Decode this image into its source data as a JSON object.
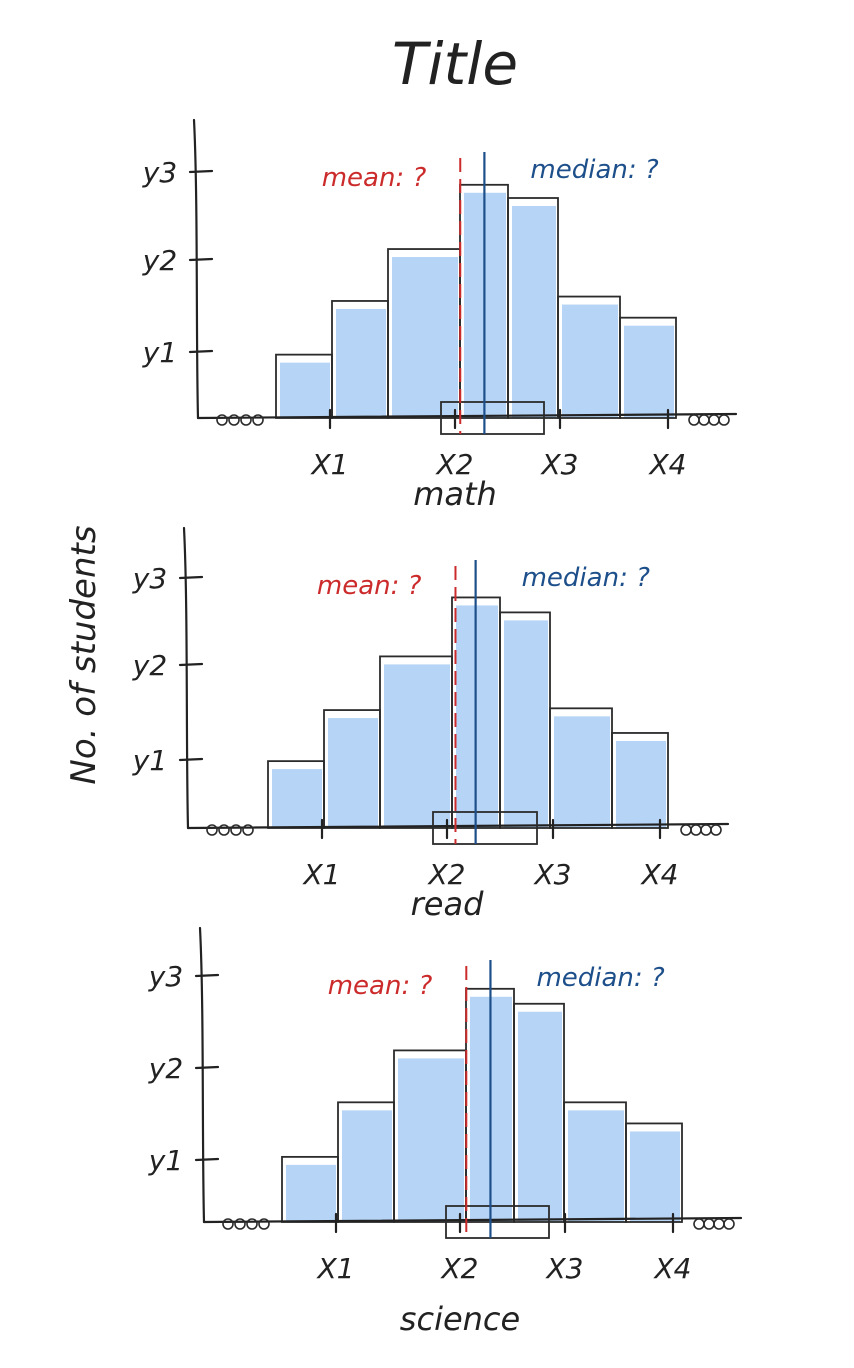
{
  "title": "Title",
  "ylabel": "No. of students",
  "chart_data": [
    {
      "type": "bar",
      "xlabel": "math",
      "x_ticks": [
        "X1",
        "X2",
        "X3",
        "X4"
      ],
      "y_ticks": [
        "y1",
        "y2",
        "y3"
      ],
      "values": [
        0.72,
        1.33,
        1.92,
        2.65,
        2.5,
        1.38,
        1.14
      ],
      "mean_label": "mean: ?",
      "median_label": "median: ?",
      "mean_x": 2.05,
      "median_x": 2.28,
      "grid": false
    },
    {
      "type": "bar",
      "xlabel": "read",
      "x_ticks": [
        "X1",
        "X2",
        "X3",
        "X4"
      ],
      "y_ticks": [
        "y1",
        "y2",
        "y3"
      ],
      "values": [
        0.76,
        1.34,
        1.95,
        2.62,
        2.45,
        1.36,
        1.08
      ],
      "mean_label": "mean: ?",
      "median_label": "median: ?",
      "mean_x": 2.08,
      "median_x": 2.27,
      "grid": false
    },
    {
      "type": "bar",
      "xlabel": "science",
      "x_ticks": [
        "X1",
        "X2",
        "X3",
        "X4"
      ],
      "y_ticks": [
        "y1",
        "y2",
        "y3"
      ],
      "values": [
        0.74,
        1.36,
        1.95,
        2.65,
        2.48,
        1.36,
        1.12
      ],
      "mean_label": "mean: ?",
      "median_label": "median: ?",
      "mean_x": 2.06,
      "median_x": 2.29,
      "grid": false
    }
  ],
  "colors": {
    "bar": "#b6d4f5",
    "mean": "#cc2b2b",
    "median": "#1d4f8a",
    "ink": "#222222"
  }
}
